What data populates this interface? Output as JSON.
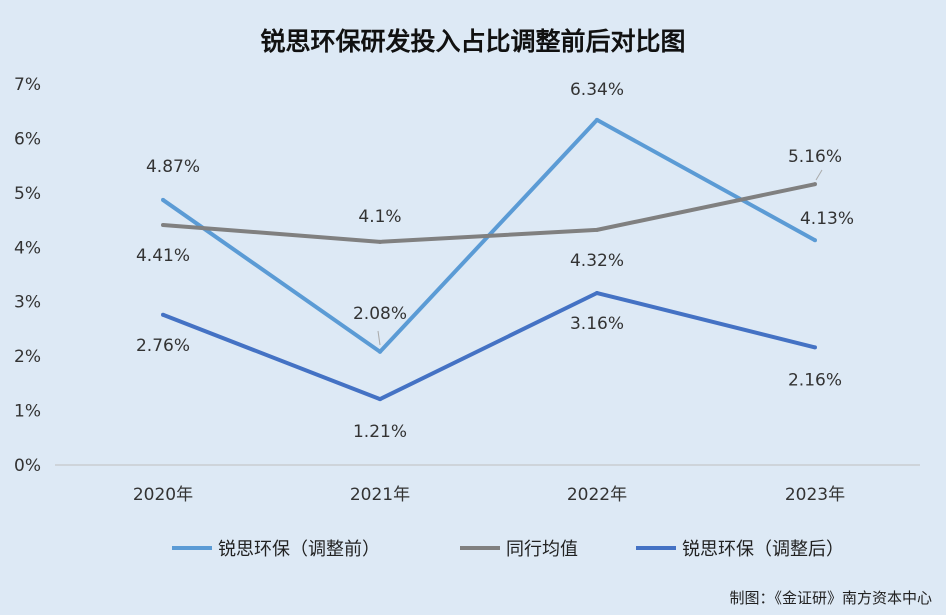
{
  "chart_data": {
    "type": "line",
    "title": "锐思环保研发投入占比调整前后对比图",
    "categories": [
      "2020年",
      "2021年",
      "2022年",
      "2023年"
    ],
    "ylim": [
      0,
      7
    ],
    "yticks": [
      "0%",
      "1%",
      "2%",
      "3%",
      "4%",
      "5%",
      "6%",
      "7%"
    ],
    "grid": false,
    "legend_position": "bottom",
    "series": [
      {
        "name": "锐思环保（调整前）",
        "color": "#5b9bd5",
        "values": [
          4.87,
          2.08,
          6.34,
          4.13
        ],
        "labels": [
          "4.87%",
          "2.08%",
          "6.34%",
          "4.13%"
        ]
      },
      {
        "name": "同行均值",
        "color": "#808080",
        "values": [
          4.41,
          4.1,
          4.32,
          5.16
        ],
        "labels": [
          "4.41%",
          "4.1%",
          "4.32%",
          "5.16%"
        ]
      },
      {
        "name": "锐思环保（调整后）",
        "color": "#4472c4",
        "values": [
          2.76,
          1.21,
          3.16,
          2.16
        ],
        "labels": [
          "2.76%",
          "1.21%",
          "3.16%",
          "2.16%"
        ]
      }
    ]
  },
  "source": "制图：《金证研》南方资本中心"
}
